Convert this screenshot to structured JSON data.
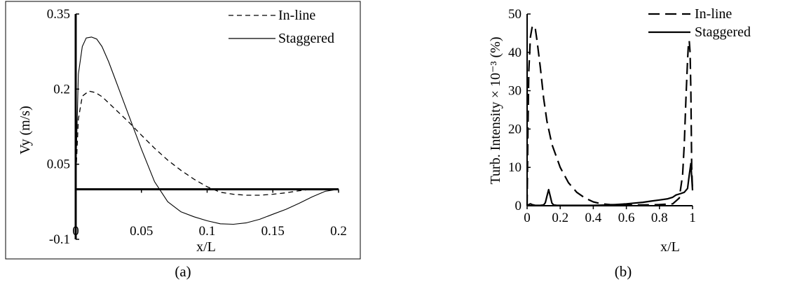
{
  "chart_data": [
    {
      "type": "line",
      "caption": "(a)",
      "xlabel": "x/L",
      "ylabel": "Vy (m/s)",
      "xlim": [
        0,
        0.2
      ],
      "ylim": [
        -0.1,
        0.35
      ],
      "xticks": [
        "0",
        "0.05",
        "0.1",
        "0.15",
        "0.2"
      ],
      "xtick_values": [
        0,
        0.05,
        0.1,
        0.15,
        0.2
      ],
      "yticks": [
        "-0.1",
        "0.05",
        "0.2",
        "0.35"
      ],
      "ytick_values": [
        -0.1,
        0.05,
        0.2,
        0.35
      ],
      "x_axis_at_y": 0,
      "grid": false,
      "legend_position": "top-right",
      "series": [
        {
          "name": "In-line",
          "style": "dashed",
          "x": [
            0,
            0.002,
            0.005,
            0.01,
            0.015,
            0.02,
            0.03,
            0.04,
            0.05,
            0.06,
            0.07,
            0.08,
            0.09,
            0.1,
            0.11,
            0.12,
            0.13,
            0.14,
            0.15,
            0.16,
            0.17,
            0.18,
            0.19,
            0.2
          ],
          "y": [
            0.02,
            0.14,
            0.186,
            0.196,
            0.193,
            0.185,
            0.16,
            0.135,
            0.108,
            0.082,
            0.058,
            0.038,
            0.02,
            0.005,
            -0.006,
            -0.01,
            -0.012,
            -0.012,
            -0.01,
            -0.007,
            -0.003,
            0.0,
            0.0,
            0.0
          ]
        },
        {
          "name": "Staggered",
          "style": "solid",
          "x": [
            0,
            0.002,
            0.005,
            0.008,
            0.012,
            0.016,
            0.02,
            0.025,
            0.03,
            0.04,
            0.05,
            0.06,
            0.07,
            0.08,
            0.09,
            0.1,
            0.11,
            0.12,
            0.13,
            0.14,
            0.15,
            0.16,
            0.17,
            0.18,
            0.19,
            0.2
          ],
          "y": [
            0.02,
            0.23,
            0.285,
            0.302,
            0.304,
            0.3,
            0.285,
            0.255,
            0.22,
            0.15,
            0.08,
            0.015,
            -0.025,
            -0.045,
            -0.055,
            -0.063,
            -0.069,
            -0.07,
            -0.067,
            -0.06,
            -0.05,
            -0.04,
            -0.028,
            -0.015,
            -0.004,
            0.0
          ]
        }
      ]
    },
    {
      "type": "line",
      "caption": "(b)",
      "xlabel": "x/L",
      "ylabel": "Turb. Intensity × 10⁻³ (%)",
      "xlim": [
        0,
        1
      ],
      "ylim": [
        0,
        50
      ],
      "xticks": [
        "0",
        "0.2",
        "0.4",
        "0.6",
        "0.8",
        "1"
      ],
      "xtick_values": [
        0,
        0.2,
        0.4,
        0.6,
        0.8,
        1
      ],
      "yticks": [
        "0",
        "10",
        "20",
        "30",
        "40",
        "50"
      ],
      "ytick_values": [
        0,
        10,
        20,
        30,
        40,
        50
      ],
      "grid": false,
      "legend_position": "top-center",
      "series": [
        {
          "name": "In-line",
          "style": "dashed",
          "x": [
            0,
            0.005,
            0.01,
            0.02,
            0.03,
            0.04,
            0.05,
            0.06,
            0.08,
            0.1,
            0.12,
            0.15,
            0.2,
            0.25,
            0.3,
            0.35,
            0.4,
            0.45,
            0.5,
            0.6,
            0.7,
            0.8,
            0.88,
            0.92,
            0.94,
            0.95,
            0.96,
            0.97,
            0.975,
            0.98,
            0.985,
            0.99,
            0.995,
            1.0
          ],
          "y": [
            0,
            20,
            35,
            44,
            46.5,
            47,
            46,
            43,
            36,
            28,
            22,
            16,
            10,
            6,
            3.5,
            2,
            1,
            0.5,
            0.3,
            0.2,
            0.2,
            0.3,
            0.5,
            2,
            8,
            16,
            28,
            38,
            42,
            43,
            40,
            30,
            10,
            4
          ]
        },
        {
          "name": "Staggered",
          "style": "solid",
          "x": [
            0,
            0.01,
            0.02,
            0.03,
            0.05,
            0.08,
            0.1,
            0.11,
            0.12,
            0.13,
            0.14,
            0.15,
            0.16,
            0.18,
            0.2,
            0.3,
            0.4,
            0.5,
            0.6,
            0.65,
            0.7,
            0.75,
            0.8,
            0.85,
            0.88,
            0.9,
            0.93,
            0.95,
            0.97,
            0.98,
            0.99,
            1.0
          ],
          "y": [
            0,
            0.3,
            0.5,
            0.3,
            0.1,
            0.1,
            0.2,
            0.8,
            2.5,
            4.2,
            2.5,
            0.7,
            0.2,
            0.1,
            0.1,
            0.1,
            0.1,
            0.2,
            0.5,
            0.7,
            0.9,
            1.2,
            1.5,
            1.8,
            2.2,
            2.8,
            3.2,
            3.5,
            4.5,
            8,
            11,
            4
          ]
        }
      ]
    }
  ]
}
